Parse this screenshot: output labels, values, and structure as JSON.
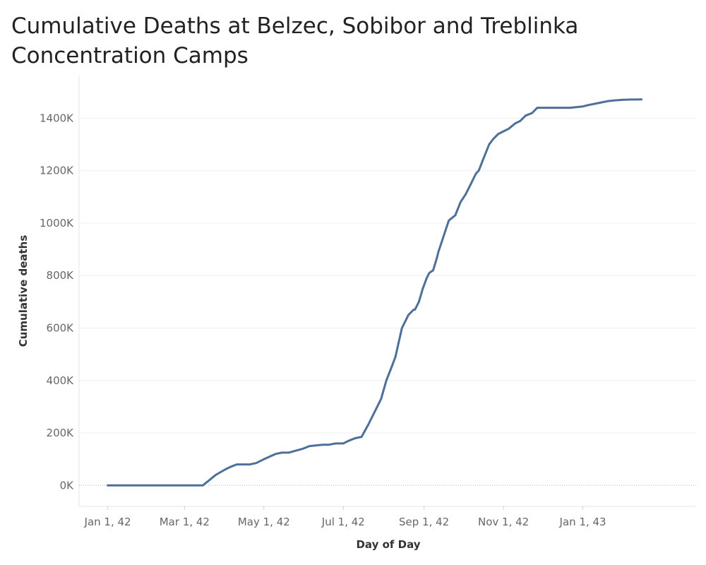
{
  "chart_data": {
    "type": "line",
    "title": "Cumulative Deaths at Belzec, Sobibor and Treblinka Concentration Camps",
    "xlabel": "Day of Day",
    "ylabel": "Cumulative deaths",
    "x_ticks": [
      "Jan 1, 42",
      "Mar 1, 42",
      "May 1, 42",
      "Jul 1, 42",
      "Sep 1, 42",
      "Nov 1, 42",
      "Jan 1, 43"
    ],
    "y_ticks": [
      "0K",
      "200K",
      "400K",
      "600K",
      "800K",
      "1000K",
      "1200K",
      "1400K"
    ],
    "xlim": [
      "1941-12-10",
      "1943-03-29"
    ],
    "ylim": [
      -80000,
      1560000
    ],
    "grid": "horizontal",
    "series_color": "#4e6f99",
    "series": [
      {
        "x": [
          "1942-01-01",
          "1942-02-01",
          "1942-03-01",
          "1942-03-15",
          "1942-03-20",
          "1942-03-25",
          "1942-04-01",
          "1942-04-05",
          "1942-04-10",
          "1942-04-15",
          "1942-04-20",
          "1942-04-25",
          "1942-05-01",
          "1942-05-10",
          "1942-05-15",
          "1942-05-20",
          "1942-05-31",
          "1942-06-05",
          "1942-06-15",
          "1942-06-20",
          "1942-06-25",
          "1942-07-01",
          "1942-07-05",
          "1942-07-10",
          "1942-07-15",
          "1942-07-20",
          "1942-07-22",
          "1942-07-25",
          "1942-07-30",
          "1942-08-03",
          "1942-08-07",
          "1942-08-10",
          "1942-08-15",
          "1942-08-20",
          "1942-08-24",
          "1942-08-25",
          "1942-08-28",
          "1942-08-31",
          "1942-09-03",
          "1942-09-05",
          "1942-09-08",
          "1942-09-11",
          "1942-09-12",
          "1942-09-16",
          "1942-09-20",
          "1942-09-25",
          "1942-09-29",
          "1942-10-03",
          "1942-10-07",
          "1942-10-10",
          "1942-10-11",
          "1942-10-13",
          "1942-10-17",
          "1942-10-21",
          "1942-10-24",
          "1942-10-28",
          "1942-11-01",
          "1942-11-05",
          "1942-11-10",
          "1942-11-14",
          "1942-11-18",
          "1942-11-23",
          "1942-11-27",
          "1942-12-01",
          "1942-12-08",
          "1942-12-15",
          "1942-12-22",
          "1943-01-01",
          "1943-01-05",
          "1943-01-10",
          "1943-01-15",
          "1943-01-20",
          "1943-01-25",
          "1943-01-31",
          "1943-02-05",
          "1943-02-15"
        ],
        "values": [
          0,
          0,
          0,
          0,
          20000,
          40000,
          60000,
          70000,
          80000,
          80000,
          80000,
          85000,
          100000,
          120000,
          125000,
          125000,
          140000,
          150000,
          155000,
          155000,
          160000,
          160000,
          170000,
          180000,
          185000,
          230000,
          250000,
          280000,
          330000,
          400000,
          450000,
          490000,
          600000,
          650000,
          670000,
          670000,
          700000,
          750000,
          790000,
          810000,
          820000,
          870000,
          890000,
          950000,
          1010000,
          1030000,
          1080000,
          1110000,
          1150000,
          1180000,
          1190000,
          1200000,
          1250000,
          1300000,
          1320000,
          1340000,
          1350000,
          1360000,
          1380000,
          1390000,
          1410000,
          1420000,
          1440000,
          1440000,
          1440000,
          1440000,
          1440000,
          1445000,
          1450000,
          1455000,
          1460000,
          1465000,
          1468000,
          1470000,
          1471000,
          1472000
        ]
      }
    ]
  }
}
